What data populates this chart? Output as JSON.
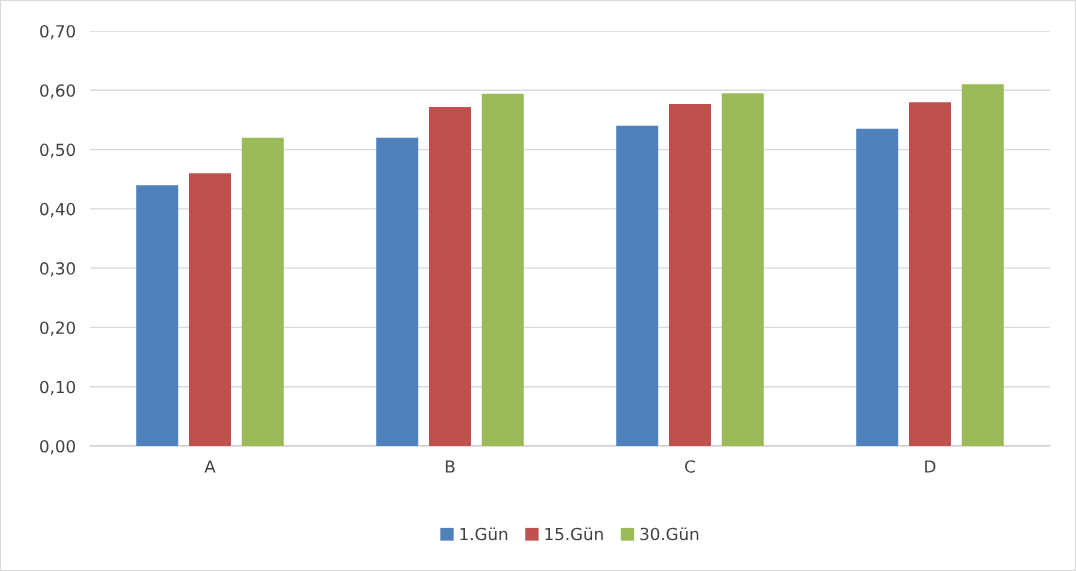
{
  "chart_data": {
    "type": "bar",
    "categories": [
      "A",
      "B",
      "C",
      "D"
    ],
    "series": [
      {
        "name": "1.Gün",
        "color": "#4f81bd",
        "values": [
          0.44,
          0.52,
          0.54,
          0.535
        ]
      },
      {
        "name": "15.Gün",
        "color": "#c0504d",
        "values": [
          0.46,
          0.572,
          0.577,
          0.58
        ]
      },
      {
        "name": "30.Gün",
        "color": "#9bbb59",
        "values": [
          0.52,
          0.594,
          0.595,
          0.61
        ]
      }
    ],
    "ylim": [
      0,
      0.7
    ],
    "yticks": [
      {
        "value": 0,
        "label": "0,00"
      },
      {
        "value": 0.1,
        "label": "0,10"
      },
      {
        "value": 0.2,
        "label": "0,20"
      },
      {
        "value": 0.3,
        "label": "0,30"
      },
      {
        "value": 0.4,
        "label": "0,40"
      },
      {
        "value": 0.5,
        "label": "0,50"
      },
      {
        "value": 0.6,
        "label": "0,60"
      },
      {
        "value": 0.7,
        "label": "0,70"
      }
    ],
    "grid": "y",
    "legend": "bottom"
  }
}
